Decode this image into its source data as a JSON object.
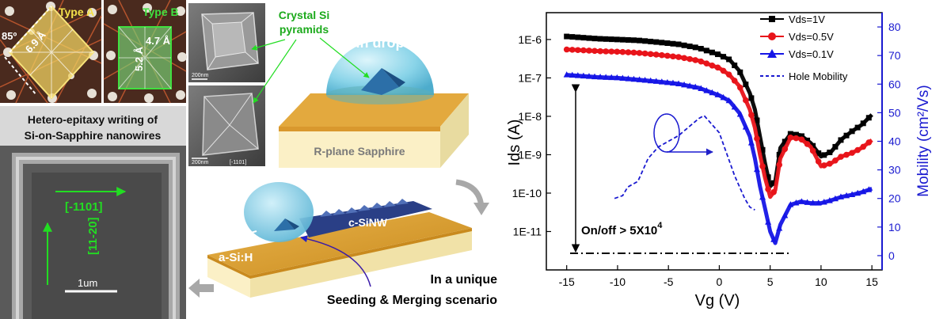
{
  "lattice": {
    "type_a_label": "Type A",
    "type_b_label": "Type B",
    "angle_label": "85º",
    "dim_a_label": "6.9 Å",
    "dim_b1_label": "4.7 Å",
    "dim_b2_label": "5.2 Å"
  },
  "sem_pyramids": {
    "scale_label_top": "200nm",
    "scale_label_bottom": "200nm",
    "direction_label": "[-1101]"
  },
  "nanowire_sem": {
    "title_line1": "Hetero-epitaxy writing  of",
    "title_line2": "Si-on-Sapphire nanowires",
    "dir_horizontal": "[-1101]",
    "dir_vertical": "[11-20]",
    "scale_bar_label": "1um"
  },
  "schematic_top": {
    "crystal_label_line1": "Crystal Si",
    "crystal_label_line2": "pyramids",
    "drop_label": "In drop",
    "substrate_label": "R-plane Sapphire"
  },
  "schematic_bottom": {
    "nanowire_label": "c-SiNW",
    "film_label": "a-Si:H",
    "caption_line1": "In a unique",
    "caption_line2": "Seeding & Merging scenario"
  },
  "chart_data": {
    "type": "line",
    "xlabel": "Vg (V)",
    "ylabel_left": "Ids (A)",
    "ylabel_right": "Mobility (cm²/Vs)",
    "xlim": [
      -17,
      16
    ],
    "y_left_log_range": [
      1e-12,
      5e-06
    ],
    "y_right_range": [
      -5,
      85
    ],
    "x_ticks": [
      -15,
      -10,
      -5,
      0,
      5,
      10,
      15
    ],
    "y_left_ticks": [
      "1E-6",
      "1E-7",
      "1E-8",
      "1E-9",
      "1E-10",
      "1E-11"
    ],
    "y_right_ticks": [
      0,
      10,
      20,
      30,
      40,
      50,
      60,
      70,
      80
    ],
    "legend_position": "top-right",
    "annotation": "On/off > 5X10",
    "annotation_exponent": "4",
    "colors": {
      "black_series": "#000000",
      "red_series": "#e8141a",
      "blue_series": "#1515e6",
      "mobility": "#1a1ad0",
      "right_axis": "#1a1ad0"
    },
    "series": [
      {
        "name": "Vds=1V",
        "marker": "square",
        "x": [
          -15,
          -12,
          -10,
          -8,
          -6,
          -4,
          -2,
          0,
          1,
          2,
          3,
          3.5,
          4,
          4.5,
          5,
          5.5,
          6,
          7,
          8,
          9,
          10,
          11,
          12,
          13,
          14,
          15
        ],
        "y": [
          1.2e-06,
          1.05e-06,
          1e-06,
          9.5e-07,
          8.5e-07,
          7.5e-07,
          6e-07,
          4e-07,
          3e-07,
          1.5e-07,
          4e-08,
          1.5e-08,
          3e-09,
          6e-10,
          1.5e-10,
          2e-10,
          1.5e-09,
          3.5e-09,
          3.2e-09,
          2e-09,
          9e-10,
          1.2e-09,
          2.5e-09,
          4e-09,
          6e-09,
          1.1e-08
        ]
      },
      {
        "name": "Vds=0.5V",
        "marker": "circle",
        "x": [
          -15,
          -12,
          -10,
          -8,
          -6,
          -4,
          -2,
          0,
          1,
          2,
          3,
          3.5,
          4,
          4.5,
          5,
          5.5,
          6,
          7,
          8,
          9,
          10,
          11,
          12,
          13,
          14,
          15
        ],
        "y": [
          5.5e-07,
          5e-07,
          4.8e-07,
          4.5e-07,
          4e-07,
          3.5e-07,
          2.8e-07,
          1.8e-07,
          1.2e-07,
          6e-08,
          1.5e-08,
          5e-09,
          1e-09,
          2.5e-10,
          8e-11,
          1.2e-10,
          8e-10,
          2.8e-09,
          2.6e-09,
          1.6e-09,
          5e-10,
          6e-10,
          9e-10,
          1.1e-09,
          1.5e-09,
          2.4e-09
        ]
      },
      {
        "name": "Vds=0.1V",
        "marker": "triangle",
        "x": [
          -15,
          -12,
          -10,
          -8,
          -6,
          -4,
          -2,
          0,
          1,
          2,
          3,
          3.5,
          4,
          4.5,
          5,
          5.5,
          6,
          7,
          8,
          9,
          10,
          11,
          12,
          13,
          14,
          15
        ],
        "y": [
          1.2e-07,
          1.05e-07,
          1e-07,
          9e-08,
          8e-08,
          7e-08,
          5.5e-08,
          3.5e-08,
          2.5e-08,
          1.2e-08,
          3e-09,
          8e-10,
          1.5e-10,
          4e-11,
          1e-11,
          5e-12,
          1.5e-11,
          5e-11,
          6e-11,
          5.5e-11,
          5.5e-11,
          6.5e-11,
          8e-11,
          9e-11,
          1.05e-10,
          1.3e-10
        ]
      },
      {
        "name": "Hole Mobility",
        "axis": "right",
        "dashed": true,
        "x": [
          -10.3,
          -9.5,
          -9,
          -8,
          -7.5,
          -7,
          -6,
          -5,
          -4,
          -3,
          -2,
          -1.5,
          -1,
          0,
          0.5,
          1,
          1.5,
          2,
          2.5,
          3,
          3.5
        ],
        "y": [
          20,
          21,
          24,
          26,
          30,
          34,
          38,
          40,
          42,
          45,
          48,
          49,
          47,
          43,
          38,
          33,
          28,
          24,
          20,
          17,
          16
        ]
      }
    ]
  }
}
